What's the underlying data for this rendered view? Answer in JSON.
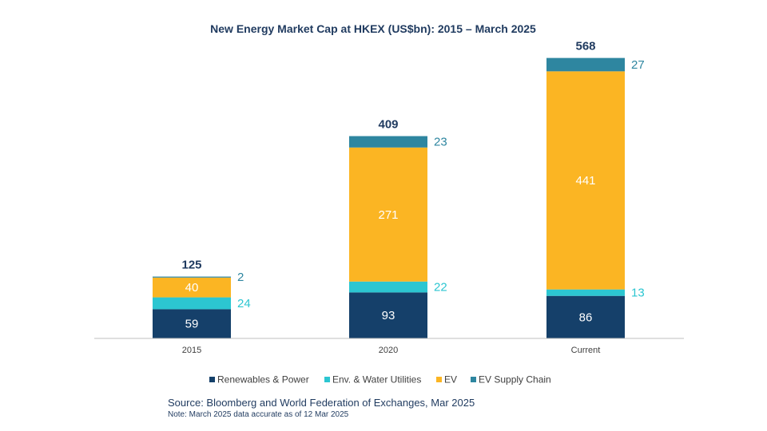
{
  "chart_data": {
    "type": "bar",
    "stacked": true,
    "title": "New Energy Market Cap at HKEX (US$bn): 2015 – March 2025",
    "categories": [
      "2015",
      "2020",
      "Current"
    ],
    "totals": [
      125,
      409,
      568
    ],
    "series": [
      {
        "name": "Renewables & Power",
        "color": "#15406a",
        "values": [
          59,
          93,
          86
        ],
        "label_position": "inside",
        "label_color": "#ffffff"
      },
      {
        "name": "Env. & Water Utilities",
        "color": "#2cc6d1",
        "values": [
          24,
          22,
          13
        ],
        "label_position": "outside",
        "label_color": "#2cc6d1"
      },
      {
        "name": "EV",
        "color": "#fbb523",
        "values": [
          40,
          271,
          441
        ],
        "label_position": "inside",
        "label_color": "#ffffff"
      },
      {
        "name": "EV Supply Chain",
        "color": "#2e86a0",
        "values": [
          2,
          23,
          27
        ],
        "label_position": "outside",
        "label_color": "#2e86a0"
      }
    ],
    "ylim": [
      0,
      600
    ],
    "legend": "bottom",
    "grid": false
  },
  "source": "Source: Bloomberg and World Federation of Exchanges, Mar 2025",
  "note": "Note: March 2025 data accurate as of 12 Mar 2025"
}
